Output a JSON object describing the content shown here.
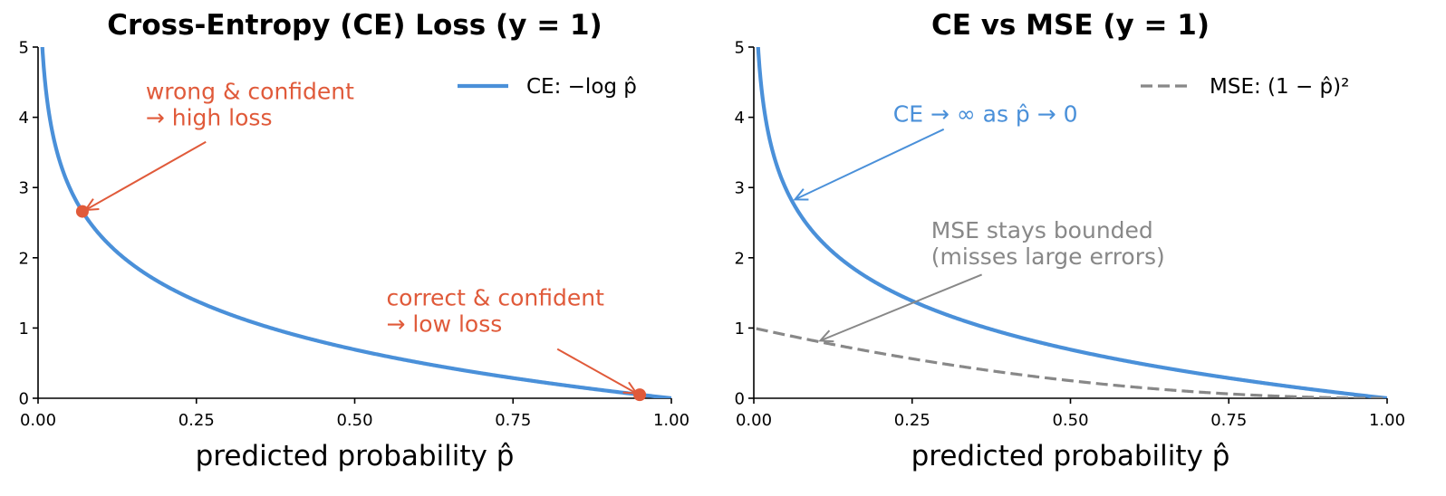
{
  "colors": {
    "ce": "#4a90d9",
    "mse": "#888888",
    "annotation": "#e05a3a",
    "axis": "#000000"
  },
  "chart_data": [
    {
      "type": "line",
      "title": "Cross-Entropy (CE) Loss  (y = 1)",
      "xlabel": "predicted probability p̂",
      "ylabel": "",
      "xlim": [
        0,
        1
      ],
      "ylim": [
        0,
        5
      ],
      "xticks": [
        "0.00",
        "0.25",
        "0.50",
        "0.75",
        "1.00"
      ],
      "yticks": [
        "0",
        "1",
        "2",
        "3",
        "4",
        "5"
      ],
      "legend_position": "top-right",
      "grid": false,
      "series": [
        {
          "name": "CE: −log p̂",
          "formula": "-log(p)",
          "color": "#4a90d9",
          "style": "solid"
        }
      ],
      "points": [
        {
          "x": 0.07,
          "y": 2.66,
          "color": "#e05a3a"
        },
        {
          "x": 0.95,
          "y": 0.05,
          "color": "#e05a3a"
        }
      ],
      "annotations": [
        {
          "lines": [
            "wrong & confident",
            "→ high loss"
          ],
          "color": "#e05a3a",
          "text_x": 0.17,
          "text_y": 4.26,
          "from_x": 0.265,
          "from_y": 3.65,
          "to_x": 0.075,
          "to_y": 2.68
        },
        {
          "lines": [
            "correct & confident",
            "→ low loss"
          ],
          "color": "#e05a3a",
          "text_x": 0.55,
          "text_y": 1.32,
          "from_x": 0.82,
          "from_y": 0.7,
          "to_x": 0.945,
          "to_y": 0.07
        }
      ]
    },
    {
      "type": "line",
      "title": "CE vs MSE  (y = 1)",
      "xlabel": "predicted probability p̂",
      "ylabel": "",
      "xlim": [
        0,
        1
      ],
      "ylim": [
        0,
        5
      ],
      "xticks": [
        "0.00",
        "0.25",
        "0.50",
        "0.75",
        "1.00"
      ],
      "yticks": [
        "0",
        "1",
        "2",
        "3",
        "4",
        "5"
      ],
      "legend_position": "top-right",
      "grid": false,
      "series": [
        {
          "formula": "-log(p)",
          "color": "#4a90d9",
          "style": "solid"
        },
        {
          "name": "MSE: (1 − p̂)²",
          "formula": "(1-p)^2",
          "color": "#888888",
          "style": "dashed"
        }
      ],
      "points": [],
      "annotations": [
        {
          "lines": [
            "CE  → ∞ as p̂ → 0"
          ],
          "color": "#4a90d9",
          "text_x": 0.22,
          "text_y": 3.94,
          "from_x": 0.3,
          "from_y": 3.83,
          "to_x": 0.065,
          "to_y": 2.83
        },
        {
          "lines": [
            "MSE stays bounded",
            "(misses large errors)"
          ],
          "color": "#888888",
          "text_x": 0.28,
          "text_y": 2.28,
          "from_x": 0.36,
          "from_y": 1.76,
          "to_x": 0.105,
          "to_y": 0.82
        }
      ]
    }
  ]
}
